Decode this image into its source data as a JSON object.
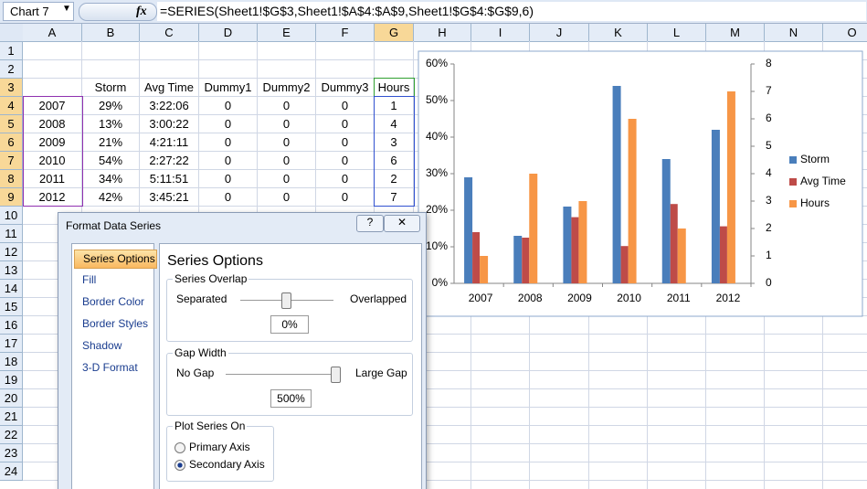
{
  "name_box": "Chart 7",
  "fx": "fx",
  "formula": "=SERIES(Sheet1!$G$3,Sheet1!$A$4:$A$9,Sheet1!$G$4:$G$9,6)",
  "columns": [
    "A",
    "B",
    "C",
    "D",
    "E",
    "F",
    "G",
    "H",
    "I",
    "J",
    "K",
    "L",
    "M",
    "N",
    "O"
  ],
  "rows": [
    "1",
    "2",
    "3",
    "4",
    "5",
    "6",
    "7",
    "8",
    "9",
    "10",
    "11",
    "12",
    "13",
    "14",
    "15",
    "16",
    "17",
    "18",
    "19",
    "20",
    "21",
    "22",
    "23",
    "24"
  ],
  "table": {
    "header": [
      "Storm",
      "Avg Time",
      "Dummy1",
      "Dummy2",
      "Dummy3",
      "Hours"
    ],
    "rows": [
      [
        "2007",
        "29%",
        "3:22:06",
        "0",
        "0",
        "0",
        "1"
      ],
      [
        "2008",
        "13%",
        "3:00:22",
        "0",
        "0",
        "0",
        "4"
      ],
      [
        "2009",
        "21%",
        "4:21:11",
        "0",
        "0",
        "0",
        "3"
      ],
      [
        "2010",
        "54%",
        "2:27:22",
        "0",
        "0",
        "0",
        "6"
      ],
      [
        "2011",
        "34%",
        "5:11:51",
        "0",
        "0",
        "0",
        "2"
      ],
      [
        "2012",
        "42%",
        "3:45:21",
        "0",
        "0",
        "0",
        "7"
      ]
    ]
  },
  "chart_data": {
    "type": "bar",
    "categories": [
      "2007",
      "2008",
      "2009",
      "2010",
      "2011",
      "2012"
    ],
    "series": [
      {
        "name": "Storm",
        "color": "#4a7ebb",
        "values": [
          29,
          13,
          21,
          54,
          34,
          42
        ]
      },
      {
        "name": "Avg Time",
        "color": "#be4b48",
        "values": [
          14,
          12.5,
          18.1,
          10.2,
          21.7,
          15.6
        ]
      },
      {
        "name": "Hours",
        "color": "#f79646",
        "axis": "y2",
        "values": [
          1,
          4,
          3,
          6,
          2,
          7
        ]
      }
    ],
    "ylim": [
      0,
      60
    ],
    "yticks": [
      {
        "value": 0,
        "label": "0%"
      },
      {
        "value": 10,
        "label": "10%"
      },
      {
        "value": 20,
        "label": "20%"
      },
      {
        "value": 30,
        "label": "30%"
      },
      {
        "value": 40,
        "label": "40%"
      },
      {
        "value": 50,
        "label": "50%"
      },
      {
        "value": 60,
        "label": "60%"
      }
    ],
    "y2lim": [
      0,
      8
    ],
    "y2ticks": [
      0,
      1,
      2,
      3,
      4,
      5,
      6,
      7,
      8
    ],
    "grid": false,
    "legend": "right"
  },
  "dialog": {
    "title": "Format Data Series",
    "help": "?",
    "nav": [
      "Series Options",
      "Fill",
      "Border Color",
      "Border Styles",
      "Shadow",
      "3-D Format"
    ],
    "heading": "Series Options",
    "overlap": {
      "label": "Series Overlap",
      "min": "Separated",
      "max": "Overlapped",
      "value": "0%"
    },
    "gap": {
      "label": "Gap Width",
      "min": "No Gap",
      "max": "Large Gap",
      "value": "500%"
    },
    "plot_on": {
      "label": "Plot Series On",
      "options": [
        "Primary Axis",
        "Secondary Axis"
      ]
    }
  }
}
